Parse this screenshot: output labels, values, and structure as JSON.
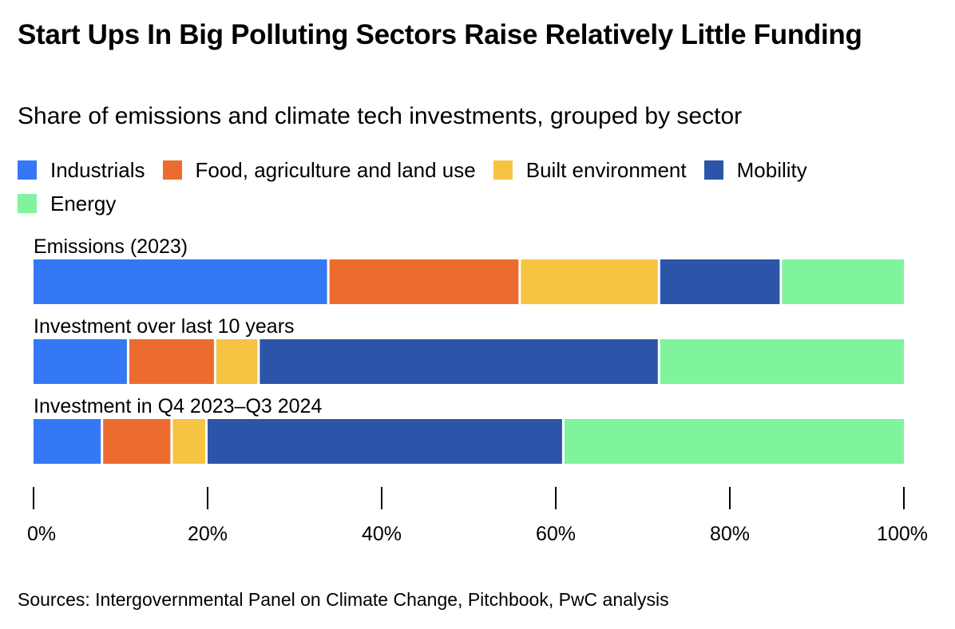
{
  "chart_data": {
    "type": "bar",
    "orientation": "horizontal",
    "stacked": true,
    "title": "Start Ups In Big Polluting Sectors Raise Relatively Little Funding",
    "subtitle": "Share of emissions and climate tech investments, grouped by sector",
    "categories": [
      "Emissions (2023)",
      "Investment over last 10 years",
      "Investment in Q4 2023–Q3 2024"
    ],
    "series": [
      {
        "name": "Industrials",
        "color": "#3478F6",
        "values": [
          34,
          11,
          8
        ]
      },
      {
        "name": "Food, agriculture and land use",
        "color": "#EC6C2F",
        "values": [
          22,
          10,
          8
        ]
      },
      {
        "name": "Built environment",
        "color": "#F5C443",
        "values": [
          16,
          5,
          4
        ]
      },
      {
        "name": "Mobility",
        "color": "#2C55A9",
        "values": [
          14,
          46,
          41
        ]
      },
      {
        "name": "Energy",
        "color": "#80F49C",
        "values": [
          14,
          28,
          39
        ]
      }
    ],
    "xlim": [
      0,
      100
    ],
    "x_ticks": [
      "0%",
      "20%",
      "40%",
      "60%",
      "80%",
      "100%"
    ],
    "legend_position": "top",
    "grid": false,
    "source": "Sources: Intergovernmental Panel on Climate Change, Pitchbook, PwC analysis"
  }
}
